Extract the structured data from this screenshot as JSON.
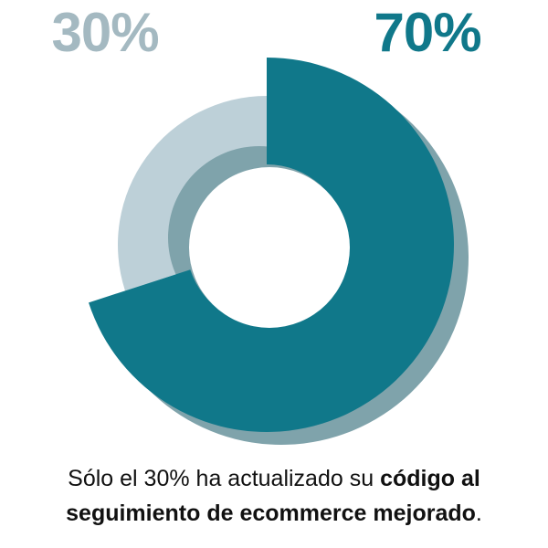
{
  "chart_data": {
    "type": "donut",
    "categories": [
      null,
      null
    ],
    "values": [
      30,
      70
    ],
    "value_labels": [
      "30%",
      "70%"
    ],
    "colors": [
      "#bdd0d8",
      "#10788a"
    ],
    "label_colors": [
      "#a4b9c1",
      "#10788a"
    ],
    "caption": {
      "text": "Sólo el 30% ha actualizado su ",
      "emphasis": "código al seguimiento de ecommerce mejorado",
      "end": "."
    }
  }
}
